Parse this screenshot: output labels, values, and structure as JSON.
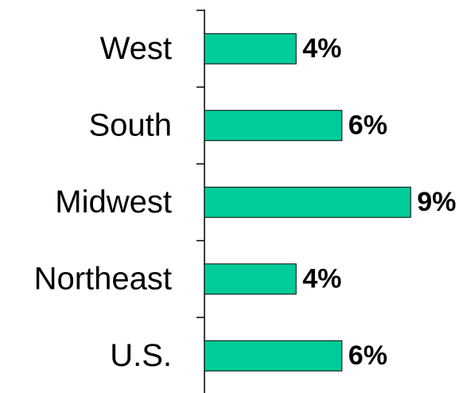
{
  "chart_data": {
    "type": "bar",
    "orientation": "horizontal",
    "categories": [
      "West",
      "South",
      "Midwest",
      "Northeast",
      "U.S."
    ],
    "values": [
      4,
      6,
      9,
      4,
      6
    ],
    "value_labels": [
      "4%",
      "6%",
      "9%",
      "4%",
      "6%"
    ],
    "color": "#00cc99"
  }
}
